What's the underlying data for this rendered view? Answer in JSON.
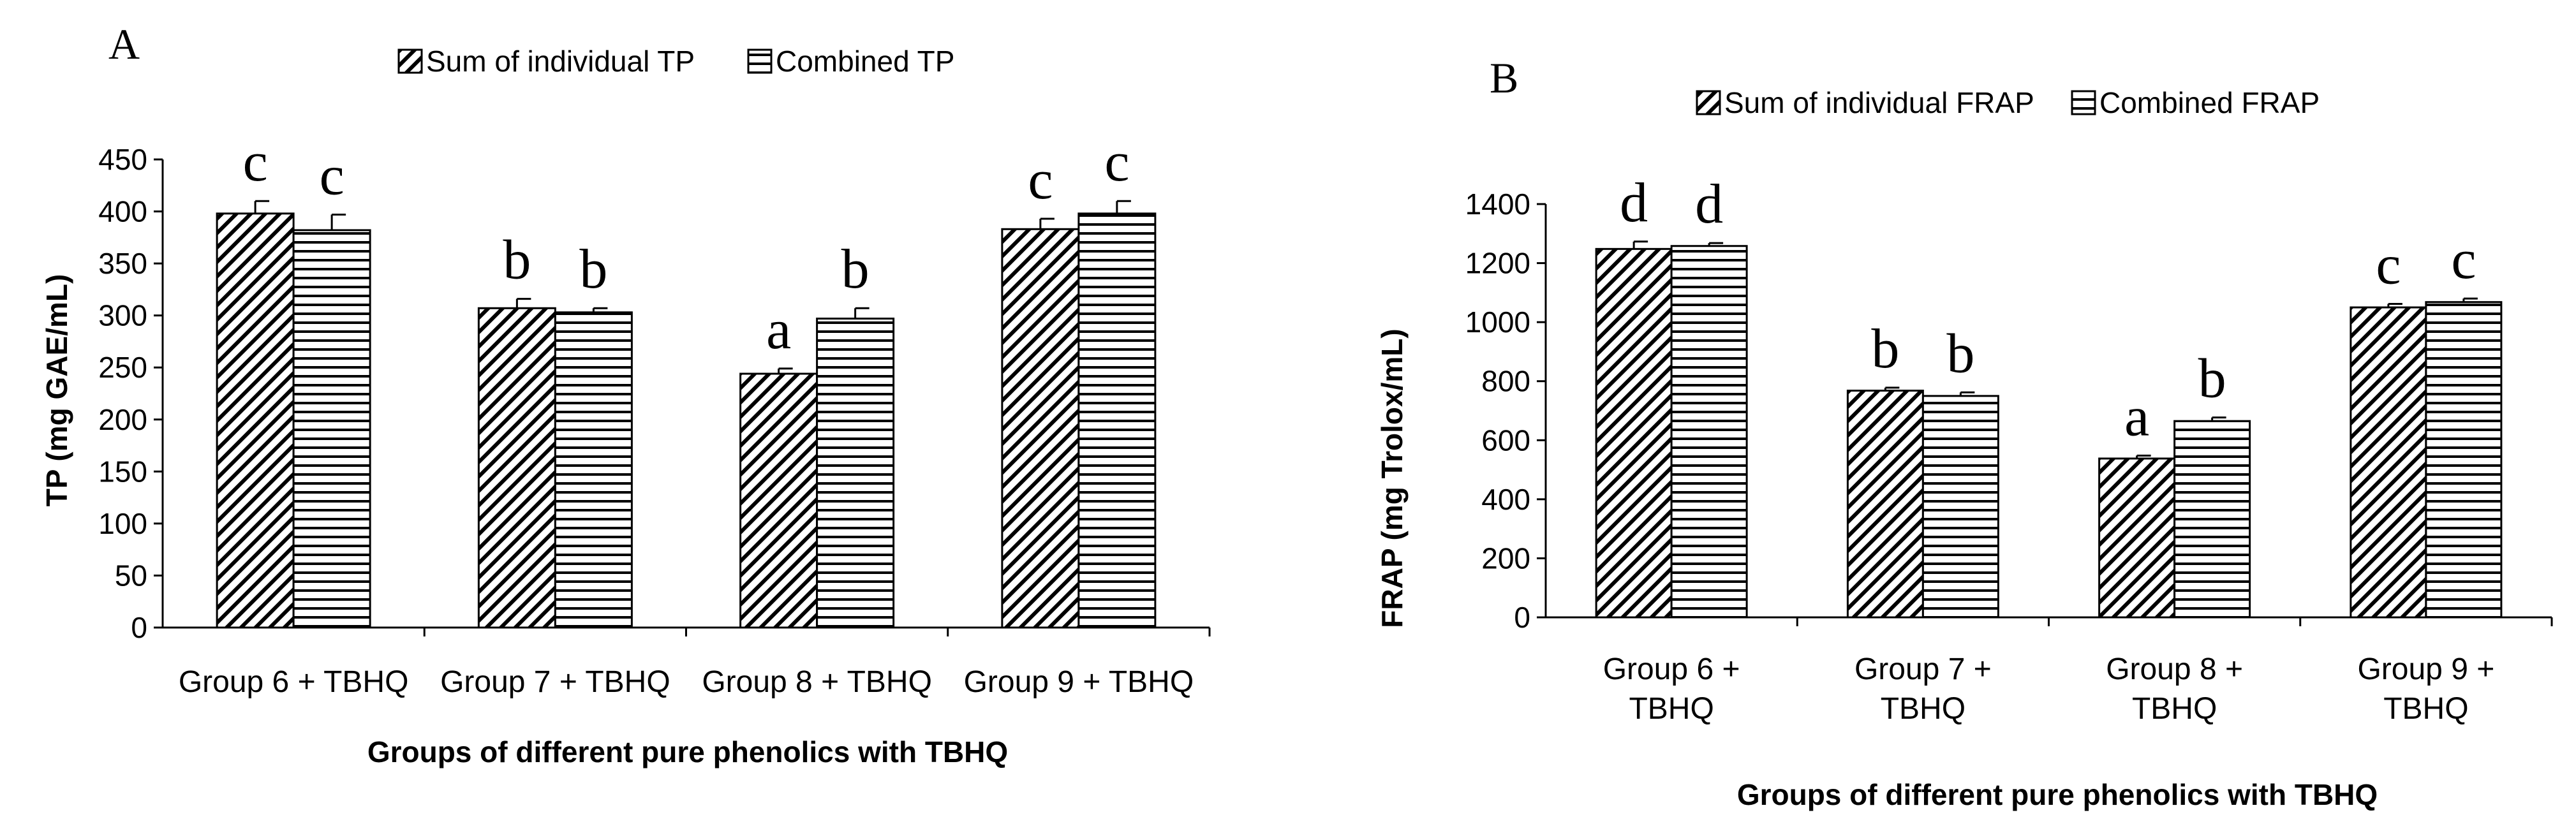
{
  "chart_data": [
    {
      "type": "bar",
      "panel_label": "A",
      "title": "",
      "legend": [
        "Sum of individual TP",
        "Combined TP"
      ],
      "categories": [
        "Group 6 + TBHQ",
        "Group 7 + TBHQ",
        "Group 8 + TBHQ",
        "Group 9 + TBHQ"
      ],
      "category_lines": [
        [
          "Group 6 + TBHQ"
        ],
        [
          "Group 7 + TBHQ"
        ],
        [
          "Group 8 + TBHQ"
        ],
        [
          "Group 9 + TBHQ"
        ]
      ],
      "series": [
        {
          "name": "Sum of individual TP",
          "pattern": "diagonal",
          "values": [
            398,
            307,
            244,
            383
          ],
          "errors": [
            12,
            9,
            5,
            10
          ],
          "letters": [
            "c",
            "b",
            "a",
            "c"
          ]
        },
        {
          "name": "Combined TP",
          "pattern": "horizontal",
          "values": [
            382,
            303,
            297,
            398
          ],
          "errors": [
            15,
            4,
            10,
            12
          ],
          "letters": [
            "c",
            "b",
            "b",
            "c"
          ]
        }
      ],
      "xlabel": "Groups of different pure phenolics with TBHQ",
      "ylabel": "TP (mg GAE/mL)",
      "ylim": [
        0,
        450
      ],
      "yticks": [
        0,
        50,
        100,
        150,
        200,
        250,
        300,
        350,
        400,
        450
      ],
      "ytick_labels": [
        "0",
        "50",
        "100",
        "150",
        "200",
        "250",
        "300",
        "350",
        "400",
        "450"
      ],
      "grid": false,
      "legend_position": "top-center"
    },
    {
      "type": "bar",
      "panel_label": "B",
      "title": "",
      "legend": [
        "Sum of individual FRAP",
        "Combined FRAP"
      ],
      "categories": [
        "Group 6 + TBHQ",
        "Group 7 + TBHQ",
        "Group 8 + TBHQ",
        "Group 9 + TBHQ"
      ],
      "category_lines": [
        [
          "Group 6 +",
          "TBHQ"
        ],
        [
          "Group 7 +",
          "TBHQ"
        ],
        [
          "Group 8 +",
          "TBHQ"
        ],
        [
          "Group 9 +",
          "TBHQ"
        ]
      ],
      "series": [
        {
          "name": "Sum of individual FRAP",
          "pattern": "diagonal",
          "values": [
            1248,
            768,
            538,
            1050
          ],
          "errors": [
            25,
            10,
            10,
            12
          ],
          "letters": [
            "d",
            "b",
            "a",
            "c"
          ]
        },
        {
          "name": "Combined FRAP",
          "pattern": "horizontal",
          "values": [
            1258,
            750,
            665,
            1068
          ],
          "errors": [
            10,
            12,
            12,
            12
          ],
          "letters": [
            "d",
            "b",
            "b",
            "c"
          ]
        }
      ],
      "xlabel": "Groups of different pure phenolics with TBHQ",
      "ylabel": "FRAP (mg Trolox/mL)",
      "ylim": [
        0,
        1400
      ],
      "yticks": [
        0,
        200,
        400,
        600,
        800,
        1000,
        1200,
        1400
      ],
      "ytick_labels": [
        "0",
        "200",
        "400",
        "600",
        "800",
        "1000",
        "1200",
        "1400"
      ],
      "grid": false,
      "legend_position": "top-center"
    }
  ]
}
